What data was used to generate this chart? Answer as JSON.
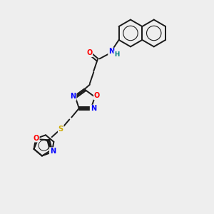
{
  "background_color": "#eeeeee",
  "bond_color": "#1a1a1a",
  "atom_colors": {
    "N": "#0000FF",
    "O": "#FF0000",
    "S": "#ccaa00",
    "H": "#008080",
    "C": "#1a1a1a"
  },
  "figsize": [
    3.0,
    3.0
  ],
  "dpi": 100
}
